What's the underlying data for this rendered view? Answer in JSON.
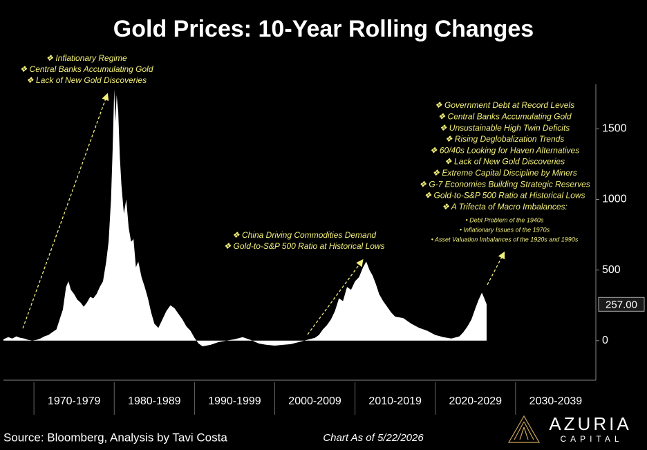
{
  "chart_data": {
    "type": "area",
    "title": "Gold Prices: 10-Year Rolling Changes",
    "color": "#ffffff",
    "x": [
      1966.2,
      1966.8,
      1967.3,
      1967.8,
      1968.3,
      1968.8,
      1969.3,
      1969.8,
      1970.3,
      1970.8,
      1971.3,
      1971.8,
      1972.3,
      1972.8,
      1973.2,
      1973.6,
      1974.0,
      1974.3,
      1974.6,
      1975.0,
      1975.4,
      1975.8,
      1976.2,
      1976.6,
      1977.0,
      1977.4,
      1977.8,
      1978.2,
      1978.6,
      1979.0,
      1979.3,
      1979.6,
      1979.8,
      1980.0,
      1980.15,
      1980.3,
      1980.5,
      1980.7,
      1980.9,
      1981.2,
      1981.5,
      1981.8,
      1982.1,
      1982.4,
      1982.7,
      1983.0,
      1983.4,
      1983.8,
      1984.2,
      1984.6,
      1985.0,
      1985.5,
      1986.0,
      1986.5,
      1987.0,
      1987.5,
      1988.0,
      1988.5,
      1989.0,
      1989.5,
      1990.0,
      1990.5,
      1991.0,
      1992.0,
      1993.0,
      1994.0,
      1995.0,
      1996.0,
      1997.0,
      1998.0,
      1999.0,
      2000.0,
      2001.0,
      2002.0,
      2003.0,
      2004.0,
      2005.0,
      2005.5,
      2006.0,
      2006.5,
      2007.0,
      2007.5,
      2008.0,
      2008.5,
      2009.0,
      2009.5,
      2010.0,
      2010.5,
      2011.0,
      2011.4,
      2011.8,
      2012.2,
      2012.6,
      2013.0,
      2013.5,
      2014.0,
      2014.5,
      2015.0,
      2016.0,
      2017.0,
      2018.0,
      2019.0,
      2020.0,
      2021.0,
      2022.0,
      2023.0,
      2023.5,
      2024.0,
      2024.5,
      2025.0,
      2025.4,
      2025.8,
      2026.1,
      2026.39
    ],
    "values": [
      10,
      25,
      15,
      30,
      20,
      15,
      5,
      0,
      5,
      15,
      30,
      40,
      60,
      80,
      150,
      220,
      380,
      420,
      360,
      330,
      290,
      270,
      240,
      270,
      310,
      300,
      330,
      380,
      420,
      560,
      700,
      1000,
      1350,
      1780,
      1550,
      1740,
      1620,
      1300,
      1100,
      900,
      1000,
      800,
      700,
      720,
      520,
      560,
      450,
      380,
      300,
      200,
      120,
      90,
      150,
      210,
      250,
      230,
      190,
      150,
      100,
      70,
      20,
      -20,
      -40,
      -30,
      -10,
      0,
      10,
      25,
      5,
      -20,
      -30,
      -35,
      -30,
      -25,
      -10,
      5,
      20,
      40,
      80,
      110,
      150,
      210,
      300,
      280,
      380,
      360,
      420,
      450,
      520,
      560,
      500,
      460,
      400,
      330,
      280,
      240,
      200,
      170,
      160,
      120,
      90,
      70,
      40,
      25,
      15,
      30,
      60,
      100,
      150,
      230,
      290,
      340,
      300,
      257
    ],
    "last_value": {
      "value": 257,
      "label": "257.00"
    },
    "xlim": [
      1966.2,
      2040
    ],
    "ylim": [
      -280,
      1815
    ],
    "yticks": [
      0,
      500,
      1000,
      1500
    ],
    "x_bands": [
      {
        "start": 1970,
        "end": 1980,
        "label": "1970-1979"
      },
      {
        "start": 1980,
        "end": 1990,
        "label": "1980-1989"
      },
      {
        "start": 1990,
        "end": 2000,
        "label": "1990-1999"
      },
      {
        "start": 2000,
        "end": 2010,
        "label": "2000-2009"
      },
      {
        "start": 2010,
        "end": 2020,
        "label": "2010-2019"
      },
      {
        "start": 2020,
        "end": 2030,
        "label": "2020-2029"
      },
      {
        "start": 2030,
        "end": 2040,
        "label": "2030-2039"
      }
    ],
    "annotations": [
      {
        "lines": [
          "❖ Inflationary Regime",
          "❖ Central Banks Accumulating Gold",
          "❖ Lack of New Gold Discoveries"
        ]
      },
      {
        "lines": [
          "❖ China Driving Commodities Demand",
          "❖ Gold-to-S&P 500 Ratio at Historical Lows"
        ]
      },
      {
        "lines": [
          "❖ Government Debt at Record Levels",
          "❖ Central Banks Accumulating Gold",
          "❖ Unsustainable High Twin Deficits",
          "❖ Rising Deglobalization Trends",
          "❖ 60/40s Looking for Haven Alternatives",
          "❖ Lack of New Gold Discoveries",
          "❖ Extreme Capital Discipline by Miners",
          "❖ G-7 Economies Building Strategic Reserves",
          "❖ Gold-to-S&P 500 Ratio at Historical Lows",
          "❖ A Trifecta of Macro Imbalances:"
        ],
        "sub_lines": [
          "•   Debt Problem of the 1940s",
          "•   Inflationary Issues of the 1970s",
          "•   Asset Valuation Imbalances of the 1920s and 1990s"
        ]
      }
    ],
    "source": "Source: Bloomberg, Analysis by Tavi Costa",
    "as_of": "Chart As of 5/22/2026",
    "logo": {
      "name": "AZURIA",
      "sub": "CAPITAL"
    }
  }
}
